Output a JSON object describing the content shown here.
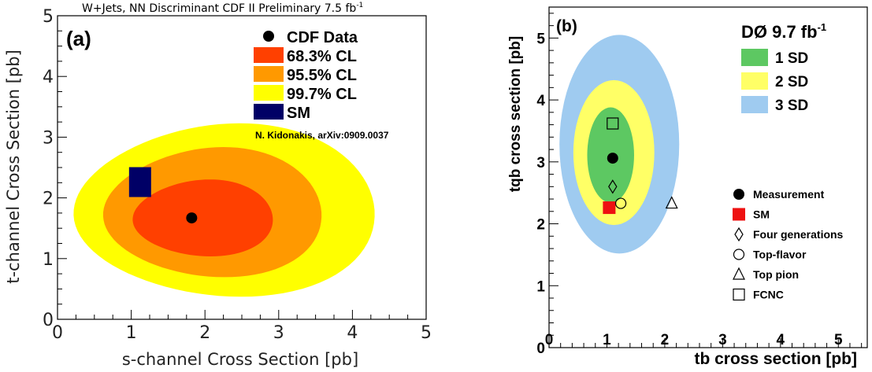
{
  "chart_data": [
    {
      "type": "contour",
      "panel_label": "(a)",
      "title": "W+Jets, NN Discriminant CDF II Preliminary 7.5 fb",
      "title_superscript": "-1",
      "xlabel": "s-channel Cross Section [pb]",
      "ylabel": "t-channel Cross Section [pb]",
      "xlim": [
        0,
        5
      ],
      "ylim": [
        0,
        5
      ],
      "x_ticks": [
        "0",
        "1",
        "2",
        "3",
        "4",
        "5"
      ],
      "y_ticks": [
        "0",
        "1",
        "2",
        "3",
        "4",
        "5"
      ],
      "citation": "N. Kidonakis, arXiv:0909.0037",
      "legend": [
        {
          "label": "CDF Data",
          "marker": "circle"
        },
        {
          "label": "68.3% CL",
          "marker": "box",
          "color": "#ff4000"
        },
        {
          "label": "95.5% CL",
          "marker": "box",
          "color": "#ff9900"
        },
        {
          "label": "99.7% CL",
          "marker": "box",
          "color": "#ffff00"
        },
        {
          "label": "SM",
          "marker": "box",
          "color": "#000066"
        }
      ],
      "regions": [
        {
          "name": "99.7% CL",
          "color": "#ffff00",
          "x_min": 0.22,
          "x_max": 4.3,
          "y_min": 0.38,
          "y_max": 3.22
        },
        {
          "name": "95.5% CL",
          "color": "#ff9900",
          "x_min": 0.62,
          "x_max": 3.58,
          "y_min": 0.7,
          "y_max": 2.83
        },
        {
          "name": "68.3% CL",
          "color": "#ff4000",
          "x_min": 1.02,
          "x_max": 2.92,
          "y_min": 1.04,
          "y_max": 2.3
        }
      ],
      "data_point": {
        "x": 1.82,
        "y": 1.67
      },
      "sm_prediction": {
        "x": 1.12,
        "y": 2.26
      }
    },
    {
      "type": "contour",
      "panel_label": "(b)",
      "experiment": "DØ 9.7 fb",
      "experiment_superscript": "-1",
      "xlabel": "tb cross section [pb]",
      "ylabel": "tqb cross section [pb]",
      "xlim": [
        0,
        5.5
      ],
      "ylim": [
        0,
        5.5
      ],
      "x_ticks": [
        "0",
        "1",
        "2",
        "3",
        "4",
        "5"
      ],
      "y_ticks": [
        "0",
        "1",
        "2",
        "3",
        "4",
        "5"
      ],
      "legend_sd": [
        {
          "label": "1  SD",
          "color": "#5dc862"
        },
        {
          "label": "2  SD",
          "color": "#ffff66"
        },
        {
          "label": "3  SD",
          "color": "#9fcbf0"
        }
      ],
      "legend_points": [
        {
          "label": "Measurement",
          "marker": "circle"
        },
        {
          "label": "SM",
          "marker": "square-red"
        },
        {
          "label": "Four generations",
          "marker": "diamond"
        },
        {
          "label": "Top-flavor",
          "marker": "circle-open"
        },
        {
          "label": "Top pion",
          "marker": "triangle"
        },
        {
          "label": "FCNC",
          "marker": "square-open"
        }
      ],
      "regions": [
        {
          "name": "3 SD",
          "color": "#9fcbf0",
          "x_min": 0.18,
          "x_max": 2.25,
          "y_min": 1.52,
          "y_max": 5.05
        },
        {
          "name": "2 SD",
          "color": "#ffff66",
          "x_min": 0.42,
          "x_max": 1.82,
          "y_min": 1.98,
          "y_max": 4.32
        },
        {
          "name": "1 SD",
          "color": "#5dc862",
          "x_min": 0.66,
          "x_max": 1.47,
          "y_min": 2.34,
          "y_max": 3.88
        }
      ],
      "points": [
        {
          "name": "Measurement",
          "marker": "circle",
          "x": 1.1,
          "y": 3.06
        },
        {
          "name": "SM",
          "marker": "square-red",
          "x": 1.04,
          "y": 2.26
        },
        {
          "name": "Four generations",
          "marker": "diamond",
          "x": 1.1,
          "y": 2.6
        },
        {
          "name": "Top-flavor",
          "marker": "circle-open",
          "x": 1.24,
          "y": 2.33
        },
        {
          "name": "Top pion",
          "marker": "triangle",
          "x": 2.12,
          "y": 2.33
        },
        {
          "name": "FCNC",
          "marker": "square-open",
          "x": 1.1,
          "y": 3.62
        }
      ]
    }
  ]
}
